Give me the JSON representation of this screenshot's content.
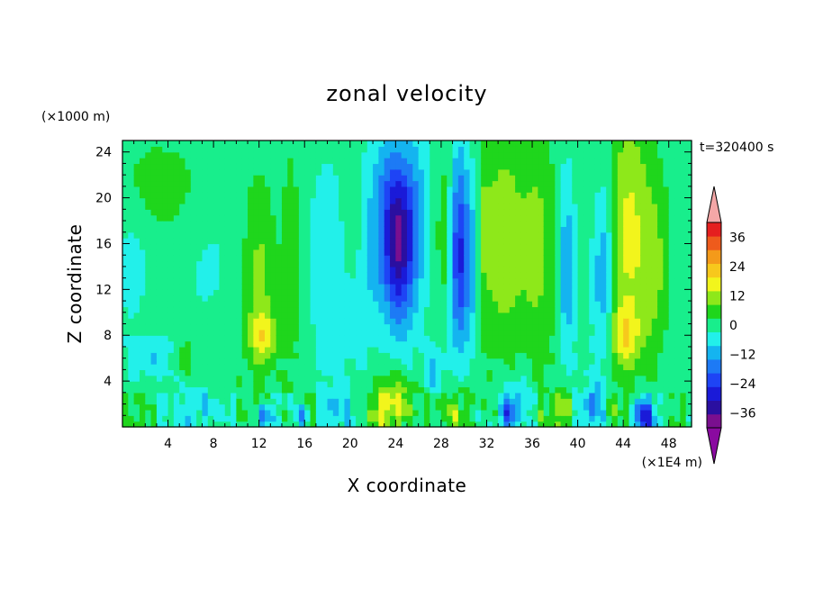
{
  "chart_data": {
    "type": "heatmap",
    "title": "zonal velocity",
    "xlabel": "X coordinate",
    "ylabel": "Z coordinate",
    "x_unit_label": "(×1E4 m)",
    "y_unit_label": "(×1000 m)",
    "time_label": "t=320400 s",
    "xlim": [
      0,
      50
    ],
    "ylim": [
      0,
      25
    ],
    "x_ticks": [
      4,
      8,
      12,
      16,
      20,
      24,
      28,
      32,
      36,
      40,
      44,
      48
    ],
    "y_ticks": [
      4,
      8,
      12,
      16,
      20,
      24
    ],
    "colorbar": {
      "levels": [
        -42,
        -36,
        -30,
        -24,
        -18,
        -12,
        -6,
        0,
        6,
        12,
        18,
        24,
        30,
        36,
        42
      ],
      "labels": [
        -36,
        -24,
        -12,
        0,
        12,
        24,
        36
      ],
      "colors": [
        "#7a0f8f",
        "#2a0fa0",
        "#1a1ad8",
        "#1e44f5",
        "#1d7af5",
        "#14b4f0",
        "#22f0ea",
        "#18ee8c",
        "#1fd61c",
        "#8ee81a",
        "#f2f51c",
        "#f7c81c",
        "#f49a1a",
        "#ee5b1c",
        "#e51f1f"
      ],
      "under_color": "#8a0aa0",
      "over_color": "#f4a7a7"
    },
    "features": [
      {
        "x": 24.3,
        "z": 16,
        "sx": 1.3,
        "sz": 7,
        "value": -34
      },
      {
        "x": 23.0,
        "z": 19,
        "sx": 1.6,
        "sz": 8,
        "value": -12
      },
      {
        "x": 25.8,
        "z": 19,
        "sx": 1.2,
        "sz": 8,
        "value": -10
      },
      {
        "x": 29.6,
        "z": 15,
        "sx": 0.8,
        "sz": 9,
        "value": -28
      },
      {
        "x": 30.8,
        "z": 15,
        "sx": 0.7,
        "sz": 8,
        "value": -14
      },
      {
        "x": 31.5,
        "z": 17,
        "sx": 0.8,
        "sz": 9,
        "value": 8
      },
      {
        "x": 28.2,
        "z": 17,
        "sx": 0.7,
        "sz": 8,
        "value": 6
      },
      {
        "x": 33.5,
        "z": 16,
        "sx": 1.8,
        "sz": 10,
        "value": 14
      },
      {
        "x": 36.5,
        "z": 16,
        "sx": 1.5,
        "sz": 10,
        "value": 10
      },
      {
        "x": 39.0,
        "z": 14,
        "sx": 0.7,
        "sz": 8,
        "value": -14
      },
      {
        "x": 42.3,
        "z": 13,
        "sx": 0.9,
        "sz": 8,
        "value": -16
      },
      {
        "x": 44.5,
        "z": 17,
        "sx": 1.8,
        "sz": 11,
        "value": 16
      },
      {
        "x": 46.8,
        "z": 14,
        "sx": 1.3,
        "sz": 8,
        "value": 10
      },
      {
        "x": 12.0,
        "z": 12,
        "sx": 1.4,
        "sz": 9,
        "value": 12
      },
      {
        "x": 8.0,
        "z": 14,
        "sx": 2.5,
        "sz": 8,
        "value": -4
      },
      {
        "x": 14.8,
        "z": 15,
        "sx": 0.8,
        "sz": 10,
        "value": 6
      },
      {
        "x": 18.0,
        "z": 14,
        "sx": 1.8,
        "sz": 9,
        "value": -8
      },
      {
        "x": 20.2,
        "z": 18,
        "sx": 1.0,
        "sz": 6,
        "value": 5
      },
      {
        "x": 21.5,
        "z": 12,
        "sx": 1.5,
        "sz": 9,
        "value": -6
      },
      {
        "x": 3.5,
        "z": 21,
        "sx": 4.0,
        "sz": 4,
        "value": 6
      },
      {
        "x": 1.0,
        "z": 14,
        "sx": 1.5,
        "sz": 6,
        "value": -6
      },
      {
        "x": 2.5,
        "z": 6,
        "sx": 2.0,
        "sz": 2,
        "value": -9
      },
      {
        "x": 12.5,
        "z": 1.0,
        "sx": 0.6,
        "sz": 1.2,
        "value": -22
      },
      {
        "x": 15.7,
        "z": 0.8,
        "sx": 0.5,
        "sz": 1.0,
        "value": -20
      },
      {
        "x": 24.0,
        "z": 2.0,
        "sx": 2.0,
        "sz": 2.5,
        "value": 18
      },
      {
        "x": 29.5,
        "z": 1.5,
        "sx": 1.0,
        "sz": 2.0,
        "value": 14
      },
      {
        "x": 33.8,
        "z": 1.0,
        "sx": 0.8,
        "sz": 1.5,
        "value": -22
      },
      {
        "x": 38.8,
        "z": 1.5,
        "sx": 0.9,
        "sz": 2.0,
        "value": 12
      },
      {
        "x": 45.8,
        "z": 1.0,
        "sx": 1.0,
        "sz": 1.5,
        "value": -28
      },
      {
        "x": 41.5,
        "z": 2.0,
        "sx": 1.0,
        "sz": 2.0,
        "value": -12
      },
      {
        "x": 7.0,
        "z": 1.5,
        "sx": 1.5,
        "sz": 2.0,
        "value": -10
      },
      {
        "x": 18.0,
        "z": 1.5,
        "sx": 1.2,
        "sz": 2.0,
        "value": -8
      },
      {
        "x": 27.5,
        "z": 5.0,
        "sx": 1.0,
        "sz": 2.0,
        "value": -10
      },
      {
        "x": 44.0,
        "z": 8.0,
        "sx": 1.5,
        "sz": 2.5,
        "value": 14
      },
      {
        "x": 12.5,
        "z": 8.0,
        "sx": 1.2,
        "sz": 2.0,
        "value": 14
      },
      {
        "x": 5.5,
        "z": 6.0,
        "sx": 1.0,
        "sz": 2.0,
        "value": 8
      },
      {
        "x": 35.0,
        "z": 3.0,
        "sx": 1.5,
        "sz": 2.0,
        "value": -8
      }
    ]
  }
}
